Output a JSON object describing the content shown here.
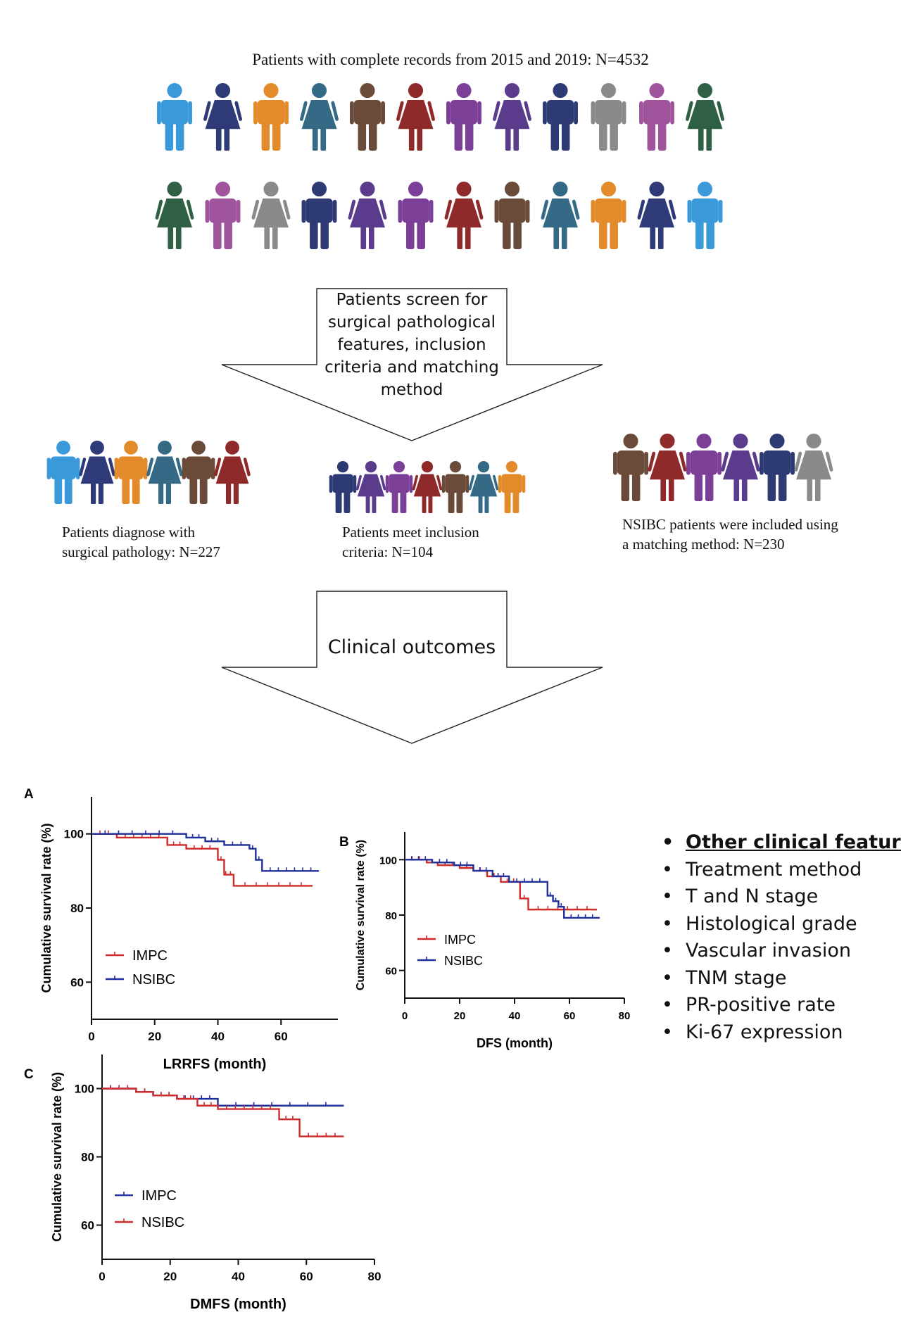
{
  "header": {
    "title": "Patients with complete records from 2015 and 2019: N=4532"
  },
  "people_colors": {
    "row1": [
      "#3a9ad9",
      "#2f3b78",
      "#e38a2a",
      "#346a85",
      "#6a4a38",
      "#8f2a2a",
      "#7c3f97",
      "#5b3b8c",
      "#2d3a74",
      "#8a8a8a",
      "#a0549c",
      "#2f5f45"
    ],
    "row2": [
      "#2f5f45",
      "#a0549c",
      "#8a8a8a",
      "#2d3a74",
      "#5b3b8c",
      "#7c3f97",
      "#8f2a2a",
      "#6a4a38",
      "#346a85",
      "#e38a2a",
      "#2f3b78",
      "#3a9ad9"
    ],
    "row1_icons": [
      "man-icon",
      "woman-icon",
      "man-icon",
      "woman-icon",
      "man-icon",
      "woman-icon",
      "man-icon",
      "woman-icon",
      "man-icon",
      "man-icon",
      "man-icon",
      "woman-icon"
    ],
    "row2_icons": [
      "woman-icon",
      "man-icon",
      "woman-icon",
      "man-icon",
      "woman-icon",
      "man-icon",
      "woman-icon",
      "man-icon",
      "woman-icon",
      "man-icon",
      "woman-icon",
      "man-icon"
    ],
    "group1": [
      "#3a9ad9",
      "#2f3b78",
      "#e38a2a",
      "#346a85",
      "#6a4a38",
      "#8f2a2a"
    ],
    "group2": [
      "#2d3a74",
      "#5b3b8c",
      "#7c3f97",
      "#8f2a2a",
      "#6a4a38",
      "#346a85",
      "#e38a2a"
    ],
    "group3": [
      "#6a4a38",
      "#8f2a2a",
      "#7c3f97",
      "#5b3b8c",
      "#2d3a74",
      "#8a8a8a"
    ]
  },
  "arrow1": {
    "lines": [
      "Patients screen for",
      "surgical pathological",
      "features, inclusion",
      "criteria and matching",
      "method"
    ]
  },
  "groups": {
    "group1_lines": [
      "Patients diagnose with",
      "surgical pathology: N=227"
    ],
    "group2_lines": [
      "Patients meet inclusion",
      "criteria: N=104"
    ],
    "group3_lines": [
      "NSIBC patients were included using",
      "a matching method: N=230"
    ]
  },
  "arrow2": {
    "label": "Clinical outcomes"
  },
  "features": {
    "heading": "Other clinical features,",
    "items": [
      "Treatment method",
      "T and N stage",
      "Histological grade",
      "Vascular invasion",
      "TNM stage",
      "PR-positive rate",
      "Ki-67 expression"
    ]
  },
  "colors": {
    "red": "#d12a2a",
    "blue": "#1f2f9c",
    "axis": "#111111"
  },
  "chart_data": [
    {
      "panel": "A",
      "type": "line",
      "xlabel": "LRRFS (month)",
      "ylabel": "Cumulative survival rate (%)",
      "xlim": [
        0,
        78
      ],
      "ylim": [
        50,
        110
      ],
      "xticks": [
        0,
        20,
        40,
        60
      ],
      "yticks": [
        60,
        80,
        100
      ],
      "legend_position": "lower-left",
      "series": [
        {
          "name": "IMPC",
          "color": "red",
          "x": [
            0,
            8,
            24,
            30,
            40,
            42,
            43,
            45,
            70
          ],
          "y": [
            100,
            99,
            97,
            96,
            93,
            89,
            89,
            86,
            86
          ]
        },
        {
          "name": "NSIBC",
          "color": "blue",
          "x": [
            0,
            30,
            36,
            42,
            50,
            52,
            54,
            72
          ],
          "y": [
            100,
            99,
            98,
            97,
            96,
            93,
            90,
            90
          ]
        }
      ]
    },
    {
      "panel": "B",
      "type": "line",
      "xlabel": "DFS (month)",
      "ylabel": "Cumulative survival rate (%)",
      "xlim": [
        0,
        80
      ],
      "ylim": [
        50,
        110
      ],
      "xticks": [
        0,
        20,
        40,
        60,
        80
      ],
      "yticks": [
        60,
        80,
        100
      ],
      "legend_position": "lower-left",
      "series": [
        {
          "name": "IMPC",
          "color": "red",
          "x": [
            0,
            8,
            12,
            20,
            25,
            30,
            35,
            42,
            45,
            70
          ],
          "y": [
            100,
            99,
            98,
            97,
            96,
            94,
            92,
            86,
            82,
            82
          ]
        },
        {
          "name": "NSIBC",
          "color": "blue",
          "x": [
            0,
            10,
            18,
            25,
            32,
            38,
            52,
            54,
            56,
            58,
            71
          ],
          "y": [
            100,
            99,
            98,
            96,
            94,
            92,
            87,
            85,
            83,
            79,
            79
          ]
        }
      ]
    },
    {
      "panel": "C",
      "type": "line",
      "xlabel": "DMFS (month)",
      "ylabel": "Cumulative survival rate (%)",
      "xlim": [
        0,
        80
      ],
      "ylim": [
        50,
        110
      ],
      "xticks": [
        0,
        20,
        40,
        60,
        80
      ],
      "yticks": [
        60,
        80,
        100
      ],
      "legend_position": "lower-left",
      "series": [
        {
          "name": "IMPC",
          "color": "blue",
          "x": [
            0,
            10,
            15,
            22,
            34,
            71
          ],
          "y": [
            100,
            99,
            98,
            97,
            95,
            95
          ]
        },
        {
          "name": "NSIBC",
          "color": "red",
          "x": [
            0,
            10,
            15,
            22,
            28,
            34,
            52,
            58,
            71
          ],
          "y": [
            100,
            99,
            98,
            97,
            95,
            94,
            91,
            86,
            86
          ]
        }
      ]
    }
  ]
}
